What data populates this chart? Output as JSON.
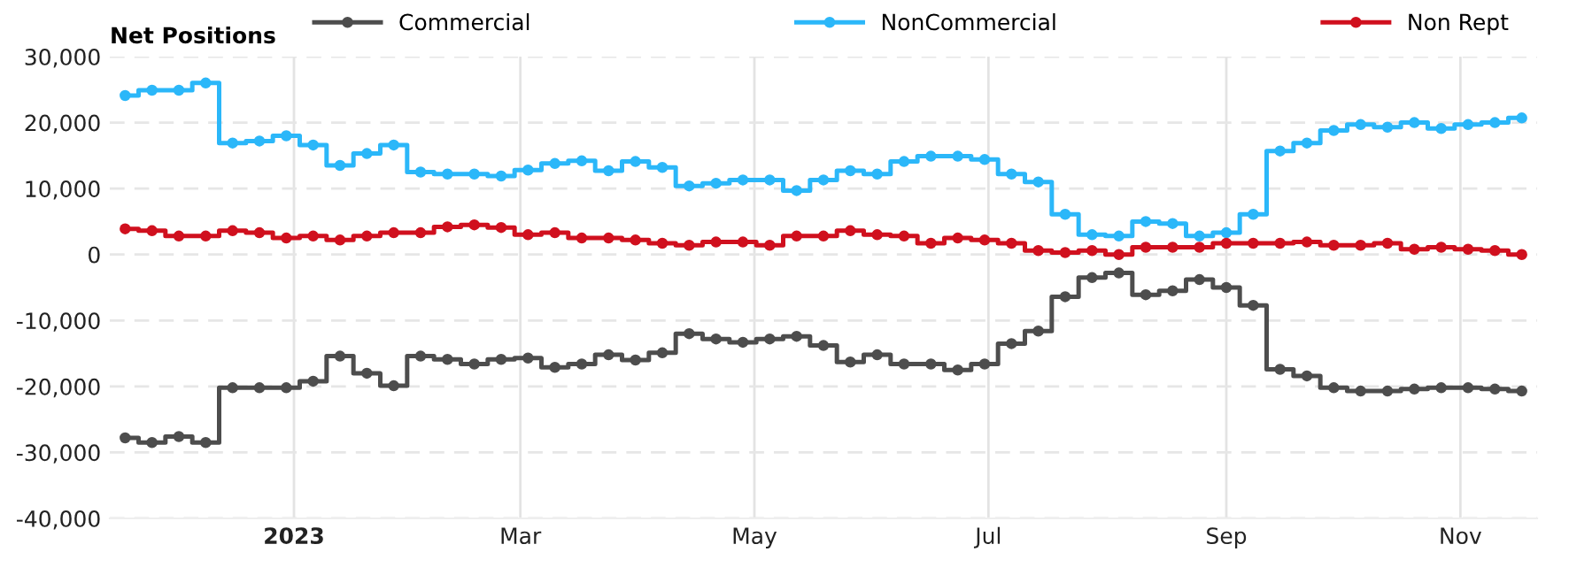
{
  "chart_data": {
    "type": "step",
    "legend_title": "Net Positions",
    "legend": "top",
    "grid": true,
    "marker": "circle",
    "line_style": "solid",
    "x": [
      "2022-11-18",
      "2022-11-25",
      "2022-12-02",
      "2022-12-09",
      "2022-12-16",
      "2022-12-23",
      "2022-12-30",
      "2023-01-06",
      "2023-01-13",
      "2023-01-20",
      "2023-01-27",
      "2023-02-03",
      "2023-02-10",
      "2023-02-17",
      "2023-02-24",
      "2023-03-03",
      "2023-03-10",
      "2023-03-17",
      "2023-03-24",
      "2023-03-31",
      "2023-04-07",
      "2023-04-14",
      "2023-04-21",
      "2023-04-28",
      "2023-05-05",
      "2023-05-12",
      "2023-05-19",
      "2023-05-26",
      "2023-06-02",
      "2023-06-09",
      "2023-06-16",
      "2023-06-23",
      "2023-06-30",
      "2023-07-07",
      "2023-07-14",
      "2023-07-21",
      "2023-07-28",
      "2023-08-04",
      "2023-08-11",
      "2023-08-18",
      "2023-08-25",
      "2023-09-01",
      "2023-09-08",
      "2023-09-15",
      "2023-09-22",
      "2023-09-29",
      "2023-10-06",
      "2023-10-13",
      "2023-10-20",
      "2023-10-27",
      "2023-11-03",
      "2023-11-10",
      "2023-11-17"
    ],
    "xlim": [
      "2022-11-14",
      "2023-11-21"
    ],
    "xticks": [
      {
        "value": "2023-01-01",
        "label": "2023"
      },
      {
        "value": "2023-03-01",
        "label": "Mar"
      },
      {
        "value": "2023-05-01",
        "label": "May"
      },
      {
        "value": "2023-07-01",
        "label": "Jul"
      },
      {
        "value": "2023-09-01",
        "label": "Sep"
      },
      {
        "value": "2023-11-01",
        "label": "Nov"
      }
    ],
    "ylim": [
      -40000,
      30000
    ],
    "yticks": [
      {
        "value": -40000,
        "label": "-40,000"
      },
      {
        "value": -30000,
        "label": "-30,000"
      },
      {
        "value": -20000,
        "label": "-20,000"
      },
      {
        "value": -10000,
        "label": "-10,000"
      },
      {
        "value": 0,
        "label": "0"
      },
      {
        "value": 10000,
        "label": "10,000"
      },
      {
        "value": 20000,
        "label": "20,000"
      },
      {
        "value": 30000,
        "label": "30,000"
      }
    ],
    "series": [
      {
        "name": "Commercial",
        "color": "#4d4d4d",
        "values": [
          -27800,
          -28500,
          -27600,
          -28500,
          -20200,
          -20200,
          -20200,
          -19200,
          -15400,
          -18000,
          -19900,
          -15400,
          -15900,
          -16600,
          -15900,
          -15700,
          -17100,
          -16600,
          -15200,
          -16000,
          -14900,
          -12000,
          -12800,
          -13300,
          -12800,
          -12400,
          -13800,
          -16300,
          -15200,
          -16600,
          -16600,
          -17500,
          -16600,
          -13500,
          -11600,
          -6400,
          -3500,
          -2800,
          -6100,
          -5500,
          -3800,
          -5000,
          -7700,
          -17400,
          -18400,
          -20200,
          -20700,
          -20700,
          -20400,
          -20200,
          -20200,
          -20400,
          -20700
        ]
      },
      {
        "name": "NonCommercial",
        "color": "#2bb7f9",
        "values": [
          24100,
          24900,
          24900,
          26000,
          16900,
          17200,
          18000,
          16600,
          13500,
          15300,
          16600,
          12500,
          12200,
          12200,
          11900,
          12800,
          13800,
          14200,
          12700,
          14100,
          13200,
          10400,
          10800,
          11300,
          11300,
          9700,
          11300,
          12700,
          12200,
          14100,
          14900,
          14900,
          14400,
          12200,
          11000,
          6100,
          3000,
          2800,
          5000,
          4700,
          2800,
          3300,
          6100,
          15700,
          16900,
          18800,
          19700,
          19300,
          20000,
          19100,
          19700,
          20000,
          20700
        ]
      },
      {
        "name": "Non Rept",
        "color": "#d0101e",
        "values": [
          3900,
          3600,
          2800,
          2800,
          3600,
          3300,
          2500,
          2800,
          2200,
          2800,
          3300,
          3300,
          4200,
          4500,
          4100,
          3000,
          3300,
          2500,
          2500,
          2200,
          1700,
          1400,
          1900,
          1900,
          1400,
          2800,
          2800,
          3600,
          3000,
          2800,
          1700,
          2500,
          2200,
          1700,
          600,
          300,
          600,
          0,
          1100,
          1100,
          1100,
          1700,
          1700,
          1700,
          1900,
          1400,
          1400,
          1700,
          800,
          1100,
          800,
          600,
          0
        ]
      }
    ]
  }
}
